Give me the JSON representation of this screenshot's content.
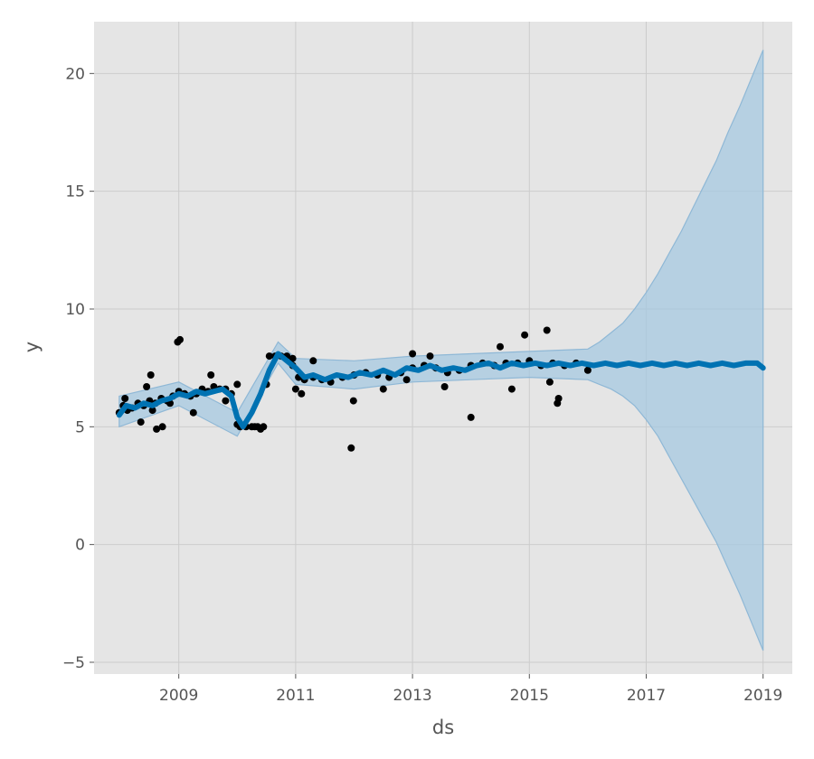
{
  "chart_data": {
    "type": "scatter",
    "xlabel": "ds",
    "ylabel": "y",
    "xlim": [
      2007.55,
      2019.5
    ],
    "ylim": [
      -5.5,
      22.2
    ],
    "x_ticks": [
      2009,
      2011,
      2013,
      2015,
      2017,
      2019
    ],
    "y_ticks": [
      -5,
      0,
      5,
      10,
      15,
      20
    ],
    "y_tick_labels": [
      "−5",
      "0",
      "5",
      "10",
      "15",
      "20"
    ],
    "grid": true,
    "background_color": "#e5e5e5",
    "grid_color": "#cccccc",
    "observed_color": "#000000",
    "forecast_color": "#0072b2",
    "interval_color": "#a6c8e0",
    "observed_series": {
      "name": "observed",
      "x": [
        2007.98,
        2008.05,
        2008.12,
        2008.2,
        2008.3,
        2008.4,
        2008.5,
        2008.55,
        2008.6,
        2008.7,
        2008.8,
        2008.9,
        2009.0,
        2009.1,
        2009.2,
        2009.3,
        2009.4,
        2009.5,
        2009.6,
        2009.7,
        2009.8,
        2009.9,
        2010.0,
        2010.05,
        2010.15,
        2010.25,
        2010.35,
        2010.45,
        2010.55,
        2010.65,
        2010.75,
        2010.85,
        2010.95,
        2011.05,
        2011.15,
        2011.3,
        2011.45,
        2011.6,
        2011.8,
        2012.0,
        2012.2,
        2012.4,
        2012.6,
        2012.8,
        2013.0,
        2013.2,
        2013.4,
        2013.6,
        2013.8,
        2014.0,
        2014.2,
        2014.4,
        2014.6,
        2014.8,
        2015.0,
        2015.2,
        2015.4,
        2015.6,
        2015.8,
        2016.0,
        2008.08,
        2008.35,
        2008.45,
        2008.52,
        2008.62,
        2008.72,
        2008.85,
        2008.98,
        2009.02,
        2009.25,
        2009.55,
        2009.8,
        2010.0,
        2010.3,
        2010.4,
        2010.5,
        2011.0,
        2011.1,
        2011.3,
        2011.95,
        2011.99,
        2012.5,
        2013.0,
        2013.3,
        2013.55,
        2014.0,
        2014.5,
        2014.92,
        2015.3,
        2015.48,
        2015.5,
        2015.35,
        2014.7,
        2012.9,
        2010.95
      ],
      "y": [
        5.6,
        5.9,
        5.7,
        5.8,
        6.0,
        5.9,
        6.1,
        5.7,
        6.0,
        6.2,
        6.1,
        6.3,
        6.5,
        6.4,
        6.3,
        6.4,
        6.6,
        6.5,
        6.7,
        6.6,
        6.6,
        6.4,
        5.1,
        5.0,
        5.0,
        5.0,
        5.0,
        5.0,
        8.0,
        8.0,
        8.0,
        8.0,
        7.9,
        7.1,
        7.0,
        7.1,
        7.0,
        6.9,
        7.1,
        7.2,
        7.3,
        7.2,
        7.1,
        7.3,
        7.5,
        7.6,
        7.5,
        7.3,
        7.4,
        7.6,
        7.7,
        7.6,
        7.7,
        7.7,
        7.8,
        7.6,
        7.7,
        7.6,
        7.7,
        7.4,
        6.2,
        5.2,
        6.7,
        7.2,
        4.9,
        5.0,
        6.0,
        8.6,
        8.7,
        5.6,
        7.2,
        6.1,
        6.8,
        5.0,
        4.9,
        6.8,
        6.6,
        6.4,
        7.8,
        4.1,
        6.1,
        6.6,
        8.1,
        8.0,
        6.7,
        5.4,
        8.4,
        8.9,
        9.1,
        6.0,
        6.2,
        6.9,
        6.6,
        7.0,
        7.6
      ]
    },
    "forecast_series": {
      "name": "yhat",
      "x": [
        2007.98,
        2008.1,
        2008.25,
        2008.4,
        2008.55,
        2008.7,
        2008.85,
        2009.0,
        2009.15,
        2009.3,
        2009.45,
        2009.6,
        2009.75,
        2009.9,
        2010.0,
        2010.1,
        2010.25,
        2010.4,
        2010.55,
        2010.7,
        2010.8,
        2010.9,
        2011.0,
        2011.15,
        2011.3,
        2011.5,
        2011.7,
        2011.9,
        2012.1,
        2012.3,
        2012.5,
        2012.7,
        2012.9,
        2013.1,
        2013.3,
        2013.5,
        2013.7,
        2013.9,
        2014.1,
        2014.3,
        2014.5,
        2014.7,
        2014.9,
        2015.1,
        2015.3,
        2015.5,
        2015.7,
        2015.9,
        2016.1,
        2016.3,
        2016.5,
        2016.7,
        2016.9,
        2017.1,
        2017.3,
        2017.5,
        2017.7,
        2017.9,
        2018.1,
        2018.3,
        2018.5,
        2018.7,
        2018.9,
        2019.0
      ],
      "y": [
        5.5,
        5.9,
        5.8,
        6.0,
        5.9,
        6.1,
        6.2,
        6.4,
        6.3,
        6.5,
        6.4,
        6.5,
        6.6,
        6.3,
        5.4,
        5.0,
        5.6,
        6.4,
        7.4,
        8.1,
        7.9,
        7.7,
        7.5,
        7.1,
        7.2,
        7.0,
        7.2,
        7.1,
        7.3,
        7.2,
        7.4,
        7.2,
        7.5,
        7.4,
        7.6,
        7.4,
        7.5,
        7.4,
        7.6,
        7.7,
        7.5,
        7.7,
        7.6,
        7.7,
        7.6,
        7.7,
        7.6,
        7.7,
        7.6,
        7.7,
        7.6,
        7.7,
        7.6,
        7.7,
        7.6,
        7.7,
        7.6,
        7.7,
        7.6,
        7.7,
        7.6,
        7.7,
        7.7,
        7.5
      ]
    },
    "uncertainty_interval": {
      "name": "interval",
      "x": [
        2007.98,
        2009.0,
        2010.0,
        2010.7,
        2011.0,
        2012.0,
        2013.0,
        2014.0,
        2015.0,
        2016.0,
        2016.2,
        2016.4,
        2016.6,
        2016.8,
        2017.0,
        2017.2,
        2017.4,
        2017.6,
        2017.8,
        2018.0,
        2018.2,
        2018.4,
        2018.6,
        2018.8,
        2019.0
      ],
      "lower": [
        5.0,
        5.9,
        4.6,
        7.7,
        6.8,
        6.6,
        6.9,
        7.0,
        7.1,
        7.0,
        6.8,
        6.6,
        6.3,
        5.9,
        5.3,
        4.6,
        3.7,
        2.8,
        1.9,
        1.0,
        0.1,
        -1.0,
        -2.1,
        -3.3,
        -4.5
      ],
      "upper": [
        6.3,
        6.9,
        5.6,
        8.6,
        7.9,
        7.8,
        8.0,
        8.1,
        8.2,
        8.3,
        8.6,
        9.0,
        9.4,
        10.0,
        10.7,
        11.5,
        12.4,
        13.3,
        14.3,
        15.3,
        16.3,
        17.5,
        18.6,
        19.8,
        21.0
      ]
    }
  }
}
